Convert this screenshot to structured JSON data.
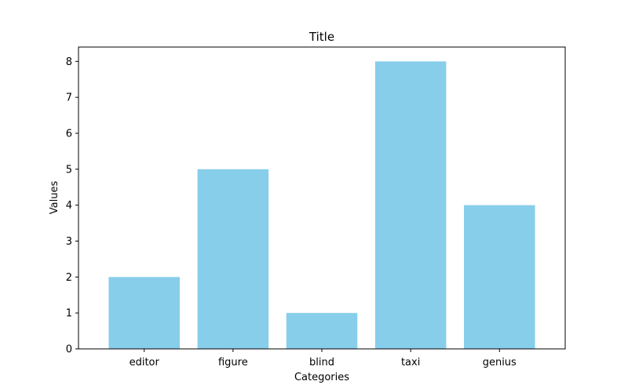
{
  "chart_data": {
    "type": "bar",
    "title": "Title",
    "xlabel": "Categories",
    "ylabel": "Values",
    "categories": [
      "editor",
      "figure",
      "blind",
      "taxi",
      "genius"
    ],
    "values": [
      2,
      5,
      1,
      8,
      4
    ],
    "ylim": [
      0,
      8.4
    ],
    "yticks": [
      0,
      1,
      2,
      3,
      4,
      5,
      6,
      7,
      8
    ],
    "grid": false,
    "legend": "none",
    "colors": {
      "bar": "#87ceeb",
      "axis": "#000000",
      "background": "#ffffff"
    }
  }
}
